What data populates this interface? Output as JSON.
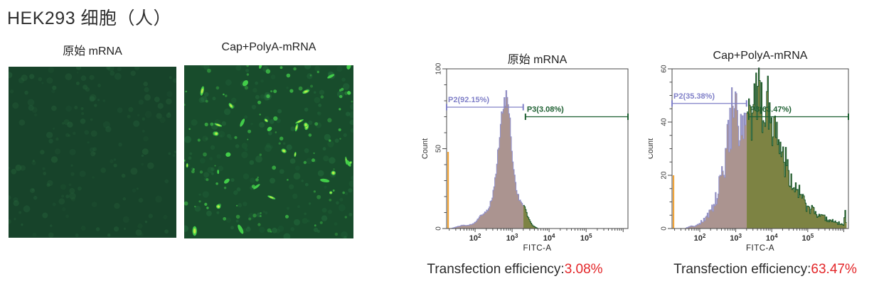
{
  "page": {
    "title": "HEK293 细胞（人）"
  },
  "micrographs": [
    {
      "label": "原始 mRNA",
      "description": "fluorescence image, almost no GFP-positive cells",
      "background": "#17432a",
      "faint_cell_color": "#2a6b3f",
      "bright_cell_color": "#4bd94f",
      "highlight_color": "#cdef4c",
      "faint_cells": 170,
      "medium_cells": 0,
      "bright_cells": 0
    },
    {
      "label": "Cap+PolyA-mRNA",
      "description": "fluorescence image, many GFP-positive cells",
      "background": "#184c2c",
      "faint_cell_color": "#2a7a44",
      "bright_cell_color": "#45d44b",
      "highlight_color": "#c9ee49",
      "faint_cells": 170,
      "medium_cells": 95,
      "bright_cells": 34
    }
  ],
  "chart_data": [
    {
      "type": "histogram",
      "title": "原始 mRNA",
      "xlabel": "FITC-A",
      "ylabel": "Count",
      "xscale": "log10",
      "xlog_range": [
        1.23,
        6.13
      ],
      "xticks_exponents": [
        2,
        3,
        4,
        5
      ],
      "ylim": [
        0,
        100
      ],
      "yticks": [
        0,
        50,
        100
      ],
      "y_minor_step": 10,
      "gate_split_log": 3.3,
      "noise": 0.07,
      "fill_left": "#ab9490",
      "stroke_left": "#8f8fcb",
      "fill_right": "#7d8343",
      "stroke_right": "#17572a",
      "spike": {
        "log_x": 1.27,
        "height": 48,
        "color": "#f0a43a"
      },
      "envelope": [
        [
          1.35,
          0
        ],
        [
          1.5,
          1
        ],
        [
          1.65,
          2
        ],
        [
          1.8,
          2
        ],
        [
          1.95,
          3
        ],
        [
          2.05,
          5
        ],
        [
          2.15,
          8
        ],
        [
          2.25,
          10
        ],
        [
          2.35,
          12
        ],
        [
          2.45,
          18
        ],
        [
          2.5,
          24
        ],
        [
          2.55,
          32
        ],
        [
          2.6,
          42
        ],
        [
          2.65,
          55
        ],
        [
          2.7,
          66
        ],
        [
          2.75,
          74
        ],
        [
          2.8,
          80
        ],
        [
          2.85,
          83
        ],
        [
          2.88,
          79
        ],
        [
          2.92,
          72
        ],
        [
          2.96,
          61
        ],
        [
          3.0,
          48
        ],
        [
          3.05,
          36
        ],
        [
          3.1,
          27
        ],
        [
          3.15,
          22
        ],
        [
          3.2,
          18
        ],
        [
          3.25,
          16
        ],
        [
          3.3,
          15
        ],
        [
          3.35,
          13
        ],
        [
          3.4,
          9
        ],
        [
          3.45,
          6
        ],
        [
          3.5,
          4
        ],
        [
          3.55,
          2
        ],
        [
          3.62,
          1
        ],
        [
          3.7,
          0
        ],
        [
          6.13,
          0
        ]
      ],
      "gates": [
        {
          "label": "P2(92.15%)",
          "percent": "92.15%",
          "color": "#8080c8",
          "level": 76,
          "from": 1.23,
          "to": 3.3
        },
        {
          "label": "P3(3.08%)",
          "percent": "3.08%",
          "color": "#1d5f31",
          "level": 70,
          "from": 3.36,
          "to": 6.13
        }
      ],
      "caption": {
        "prefix": "Transfection efficiency:",
        "value": "3.08%",
        "value_color": "#e32528"
      }
    },
    {
      "type": "histogram",
      "title": "Cap+PolyA-mRNA",
      "xlabel": "FITC-A",
      "ylabel": "Count",
      "xscale": "log10",
      "xlog_range": [
        1.23,
        6.13
      ],
      "xticks_exponents": [
        2,
        3,
        4,
        5
      ],
      "ylim": [
        0,
        60
      ],
      "yticks": [
        0,
        20,
        40,
        60
      ],
      "y_minor_step": 5,
      "gate_split_log": 3.3,
      "noise": 0.28,
      "fill_left": "#ab9490",
      "stroke_left": "#8f8fcb",
      "fill_right": "#7d8343",
      "stroke_right": "#17572a",
      "spike": {
        "log_x": 1.27,
        "height": 20,
        "color": "#f0a43a"
      },
      "envelope": [
        [
          1.6,
          0
        ],
        [
          1.75,
          1
        ],
        [
          1.9,
          1
        ],
        [
          2.0,
          2
        ],
        [
          2.1,
          3
        ],
        [
          2.2,
          5
        ],
        [
          2.3,
          6
        ],
        [
          2.4,
          9
        ],
        [
          2.5,
          13
        ],
        [
          2.6,
          19
        ],
        [
          2.65,
          22
        ],
        [
          2.7,
          26
        ],
        [
          2.75,
          30
        ],
        [
          2.8,
          34
        ],
        [
          2.85,
          39
        ],
        [
          2.9,
          43
        ],
        [
          2.95,
          45
        ],
        [
          3.0,
          41
        ],
        [
          3.05,
          38
        ],
        [
          3.1,
          34
        ],
        [
          3.15,
          37
        ],
        [
          3.2,
          35
        ],
        [
          3.25,
          36
        ],
        [
          3.3,
          37
        ],
        [
          3.35,
          40
        ],
        [
          3.4,
          41
        ],
        [
          3.45,
          43
        ],
        [
          3.5,
          44
        ],
        [
          3.55,
          45
        ],
        [
          3.6,
          47
        ],
        [
          3.65,
          48
        ],
        [
          3.7,
          50
        ],
        [
          3.75,
          48
        ],
        [
          3.8,
          47
        ],
        [
          3.85,
          48
        ],
        [
          3.9,
          46
        ],
        [
          3.95,
          44
        ],
        [
          4.0,
          43
        ],
        [
          4.05,
          41
        ],
        [
          4.1,
          38
        ],
        [
          4.15,
          35
        ],
        [
          4.2,
          33
        ],
        [
          4.3,
          29
        ],
        [
          4.4,
          25
        ],
        [
          4.5,
          21
        ],
        [
          4.6,
          18
        ],
        [
          4.7,
          15
        ],
        [
          4.8,
          12
        ],
        [
          4.9,
          10
        ],
        [
          5.0,
          8
        ],
        [
          5.1,
          7
        ],
        [
          5.2,
          6
        ],
        [
          5.3,
          5
        ],
        [
          5.4,
          4
        ],
        [
          5.5,
          4
        ],
        [
          5.6,
          3
        ],
        [
          5.7,
          3
        ],
        [
          5.8,
          2
        ],
        [
          5.9,
          2
        ],
        [
          6.0,
          1
        ],
        [
          6.04,
          8
        ],
        [
          6.08,
          0
        ]
      ],
      "gates": [
        {
          "label": "P2(35.38%)",
          "percent": "35.38%",
          "color": "#8080c8",
          "level": 47,
          "from": 1.23,
          "to": 3.3
        },
        {
          "label": "P3(63.47%)",
          "percent": "63.47%",
          "color": "#1d5f31",
          "level": 42,
          "from": 3.36,
          "to": 6.13
        }
      ],
      "caption": {
        "prefix": "Transfection efficiency:",
        "value": "63.47%",
        "value_color": "#e32528"
      }
    }
  ]
}
